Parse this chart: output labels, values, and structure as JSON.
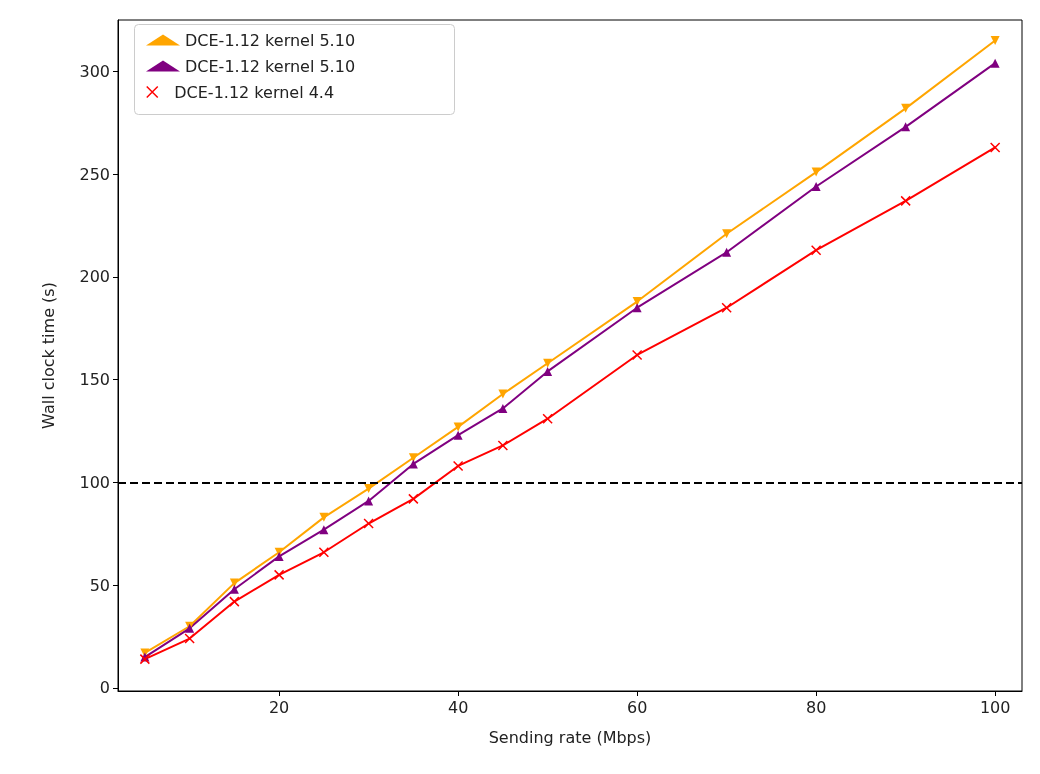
{
  "chart_data": {
    "type": "line",
    "xlabel": "Sending rate (Mbps)",
    "ylabel": "Wall clock time (s)",
    "x": [
      5,
      10,
      15,
      20,
      25,
      30,
      35,
      40,
      45,
      50,
      60,
      70,
      80,
      90,
      100
    ],
    "series": [
      {
        "name": "DCE-1.12 kernel 5.10",
        "color": "#ffa500",
        "marker": "triangle-down",
        "values": [
          17,
          30,
          51,
          66,
          83,
          97,
          112,
          127,
          143,
          158,
          188,
          221,
          251,
          282,
          315
        ]
      },
      {
        "name": "DCE-1.12 kernel 5.10",
        "color": "#800080",
        "marker": "triangle",
        "values": [
          15,
          29,
          48,
          64,
          77,
          91,
          109,
          123,
          136,
          154,
          185,
          212,
          244,
          273,
          304
        ]
      },
      {
        "name": "DCE-1.12 kernel 4.4",
        "color": "#ff0000",
        "marker": "cross",
        "values": [
          14,
          24,
          42,
          55,
          66,
          80,
          92,
          108,
          118,
          131,
          162,
          185,
          213,
          237,
          263
        ]
      }
    ],
    "xlim": [
      2,
      103
    ],
    "xticks": [
      20,
      40,
      60,
      80,
      100
    ],
    "ylim": [
      -1.5,
      325
    ],
    "yticks": [
      0,
      50,
      100,
      150,
      200,
      250,
      300
    ],
    "ref_lines": [
      {
        "axis": "y",
        "value": 100,
        "color": "#000000",
        "line_style": "dashed"
      }
    ],
    "grid": false,
    "legend": "top left",
    "line_style": "solid"
  }
}
